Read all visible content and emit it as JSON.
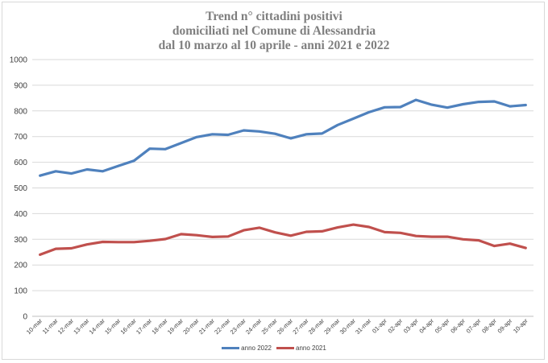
{
  "chart_data": {
    "type": "line",
    "title_lines": [
      "Trend n° cittadini positivi",
      "domiciliati nel Comune di Alessandria",
      "dal 10 marzo al 10 aprile - anni 2021 e 2022"
    ],
    "categories": [
      "10-mar",
      "11-mar",
      "12-mar",
      "13-mar",
      "14-mar",
      "15-mar",
      "16-mar",
      "17-mar",
      "18-mar",
      "19-mar",
      "20-mar",
      "21-mar",
      "22-mar",
      "23-mar",
      "24-mar",
      "25-mar",
      "26-mar",
      "27-mar",
      "28-mar",
      "29-mar",
      "30-mar",
      "31-mar",
      "01-apr",
      "02-apr",
      "03-apr",
      "04-apr",
      "05-apr",
      "06-apr",
      "07-apr",
      "08-apr",
      "09-apr",
      "10-apr"
    ],
    "ylim": [
      0,
      1000
    ],
    "yticks": [
      0,
      100,
      200,
      300,
      400,
      500,
      600,
      700,
      800,
      900,
      1000
    ],
    "grid": true,
    "legend_position": "bottom",
    "series": [
      {
        "name": "anno 2022",
        "color": "#4f81bd",
        "values": [
          548,
          565,
          556,
          572,
          565,
          586,
          606,
          653,
          651,
          675,
          698,
          709,
          707,
          724,
          720,
          711,
          693,
          709,
          712,
          745,
          770,
          795,
          814,
          815,
          843,
          824,
          813,
          826,
          835,
          837,
          818,
          823
        ]
      },
      {
        "name": "anno 2021",
        "color": "#c0504d",
        "values": [
          240,
          263,
          265,
          280,
          290,
          289,
          289,
          294,
          301,
          320,
          316,
          309,
          311,
          335,
          345,
          327,
          314,
          329,
          331,
          346,
          357,
          348,
          328,
          325,
          313,
          310,
          310,
          300,
          296,
          274,
          283,
          266
        ]
      }
    ]
  }
}
